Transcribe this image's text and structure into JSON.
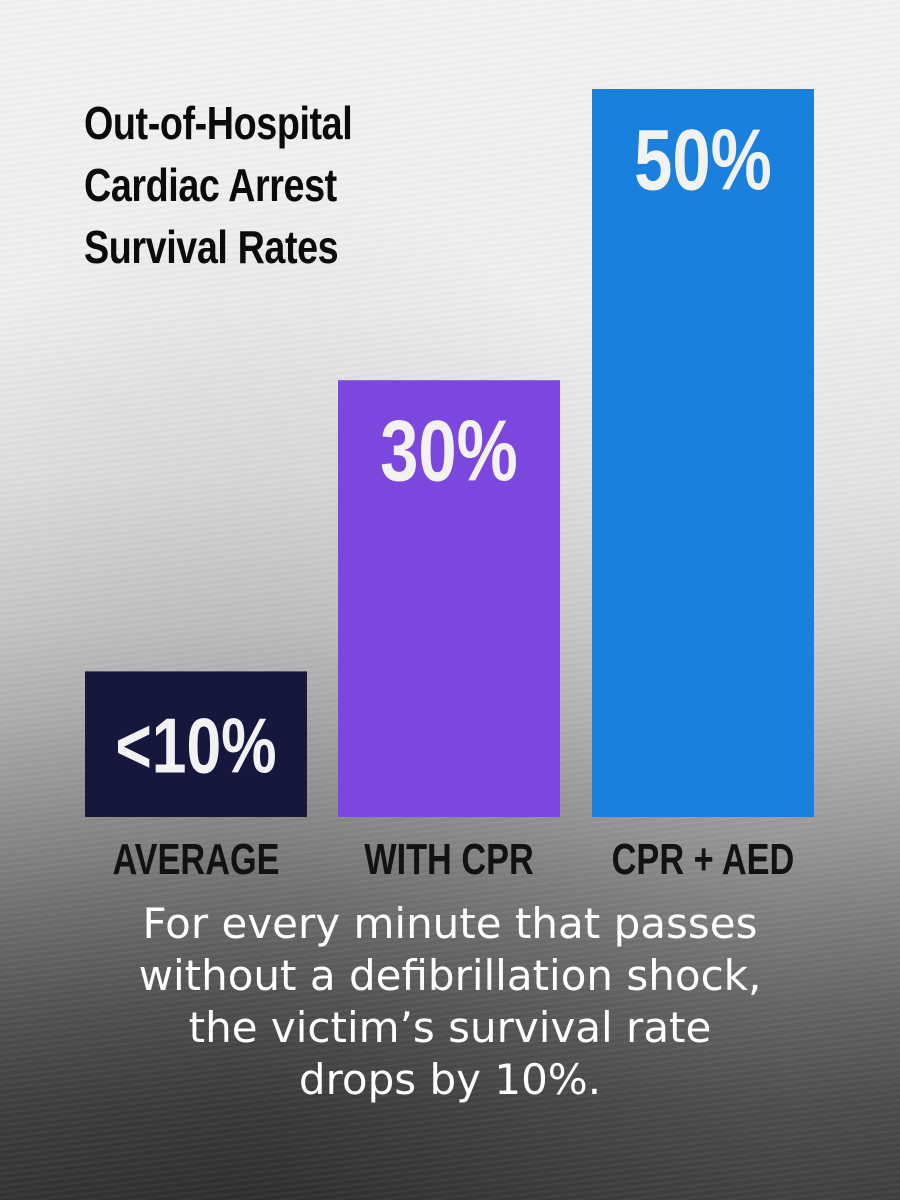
{
  "chart_data": {
    "type": "bar",
    "title_lines": [
      "Out-of-Hospital",
      "Cardiac Arrest",
      "Survival Rates"
    ],
    "categories": [
      "AVERAGE",
      "WITH CPR",
      "CPR + AED"
    ],
    "values": [
      10,
      30,
      50
    ],
    "value_labels": [
      "<10%",
      "30%",
      "50%"
    ],
    "colors": [
      "#16173c",
      "#7b47de",
      "#1a80dd"
    ],
    "ylim": [
      0,
      50
    ],
    "grid": false
  },
  "footnote_lines": [
    "For every minute that passes",
    "without a defibrillation shock,",
    "the victim’s survival rate",
    "drops by 10%."
  ]
}
